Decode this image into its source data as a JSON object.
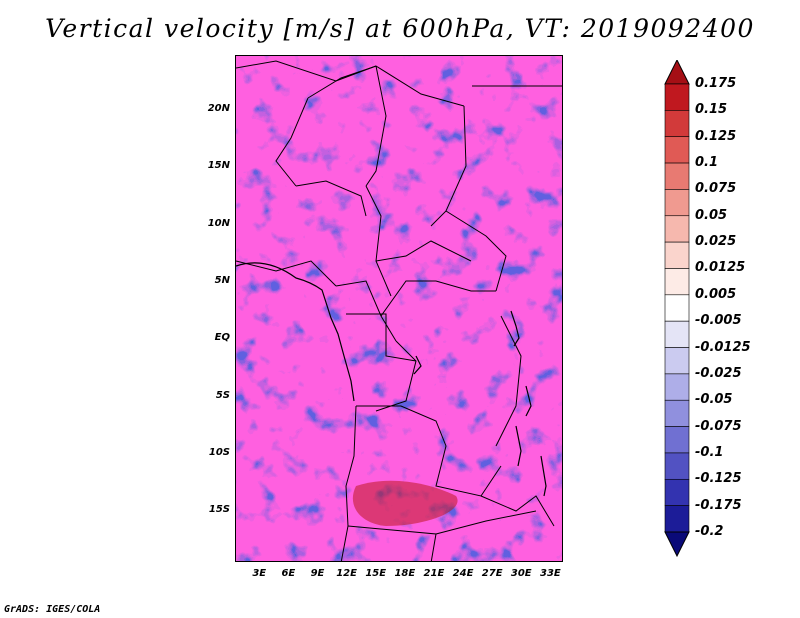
{
  "title": "Vertical velocity [m/s] at 600hPa, VT: 2019092400",
  "map": {
    "lat_labels": [
      "20N",
      "15N",
      "10N",
      "5N",
      "EQ",
      "5S",
      "10S",
      "15S"
    ],
    "lat_values": [
      20,
      15,
      10,
      5,
      0,
      -5,
      -10,
      -15
    ],
    "lon_labels": [
      "3E",
      "6E",
      "9E",
      "12E",
      "15E",
      "18E",
      "21E",
      "24E",
      "27E",
      "30E",
      "33E"
    ],
    "lon_values": [
      3,
      6,
      9,
      12,
      15,
      18,
      21,
      24,
      27,
      30,
      33
    ],
    "lat_range": [
      -19.5,
      24.7
    ],
    "lon_range": [
      0.5,
      34.3
    ]
  },
  "colorbar": {
    "labels": [
      "0.175",
      "0.15",
      "0.125",
      "0.1",
      "0.075",
      "0.05",
      "0.025",
      "0.0125",
      "0.005",
      "-0.005",
      "-0.0125",
      "-0.025",
      "-0.05",
      "-0.075",
      "-0.1",
      "-0.125",
      "-0.175",
      "-0.2"
    ],
    "colors": [
      "#a50f15",
      "#c0181f",
      "#d23a3a",
      "#e05a55",
      "#e87a72",
      "#f09a90",
      "#f6b8ae",
      "#fad4cc",
      "#fdebe6",
      "#ffffff",
      "#e4e4f6",
      "#cbcbf0",
      "#aeaee8",
      "#9090de",
      "#7070d2",
      "#5252c2",
      "#3333b0",
      "#1c1c98",
      "#0a0a78"
    ]
  },
  "credit": "GrADS: IGES/COLA"
}
